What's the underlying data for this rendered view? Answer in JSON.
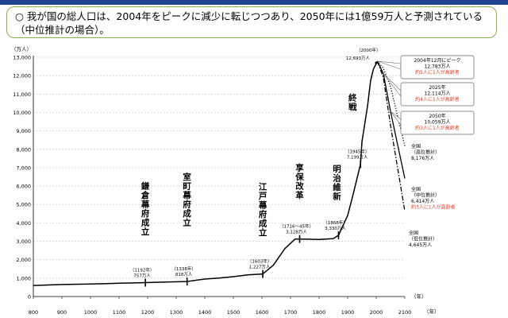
{
  "header": {
    "bullet": "○",
    "line1": "我が国の総人口は、2004年をピークに減少に転じつつあり、2050年には1億59万人と予測されている",
    "line2": "（中位推計の場合）。"
  },
  "colors": {
    "line": "#000000",
    "accent_red": "#e8402b",
    "frame": "#8ab04a",
    "bar": "#1f3f8f"
  },
  "chart_data": {
    "type": "line",
    "y_unit_label": "（万人）",
    "x_unit_label": "（年）",
    "x_ticks": [
      800,
      900,
      1000,
      1100,
      1200,
      1300,
      1400,
      1500,
      1600,
      1700,
      1800,
      1900,
      2000,
      2100
    ],
    "y_ticks": [
      0,
      1000,
      2000,
      3000,
      4000,
      5000,
      6000,
      7000,
      8000,
      9000,
      10000,
      11000,
      12000,
      13000
    ],
    "xlim": [
      800,
      2100
    ],
    "ylim": [
      0,
      13000
    ],
    "series": [
      {
        "style": "solid",
        "x": [
          800,
          900,
          1000,
          1100,
          1150,
          1192,
          1250,
          1338,
          1400,
          1450,
          1500,
          1550,
          1603,
          1640,
          1680,
          1716,
          1750,
          1800,
          1850,
          1868,
          1900,
          1920,
          1945,
          1950,
          1960,
          1970,
          1980,
          1990,
          2004
        ],
        "y": [
          600,
          650,
          680,
          720,
          740,
          757,
          780,
          818,
          950,
          1000,
          1080,
          1180,
          1227,
          1700,
          2600,
          3128,
          3120,
          3100,
          3150,
          3330,
          4400,
          5600,
          7199,
          8400,
          9400,
          10400,
          11700,
          12350,
          12783
        ]
      },
      {
        "style": "dotted",
        "x": [
          2004,
          2025,
          2050,
          2100
        ],
        "y": [
          12783,
          12400,
          11400,
          8176
        ]
      },
      {
        "style": "solid",
        "x": [
          2004,
          2025,
          2050,
          2100
        ],
        "y": [
          12783,
          12114,
          10059,
          6414
        ]
      },
      {
        "style": "dashdot",
        "x": [
          2004,
          2025,
          2050,
          2100
        ],
        "y": [
          12783,
          11900,
          9300,
          4645
        ]
      }
    ],
    "annotations": [
      {
        "id": "kamakura",
        "x": 1192,
        "y": 757,
        "text_v": "鎌倉幕府成立",
        "year": "（1192年）",
        "value": "757万人"
      },
      {
        "id": "muromachi",
        "x": 1338,
        "y": 818,
        "text_v": "室町幕府成立",
        "year": "（1338年）",
        "value": "818万人"
      },
      {
        "id": "edo",
        "x": 1603,
        "y": 1227,
        "text_v": "江戸幕府成立",
        "year": "（1603年）",
        "value": "1,227万人"
      },
      {
        "id": "kyoho",
        "x": 1732,
        "y": 3128,
        "text_v": "享保改革",
        "year": "（1716～45年）",
        "value": "3,128万人"
      },
      {
        "id": "meiji",
        "x": 1868,
        "y": 3330,
        "text_v": "明治維新",
        "year": "（1868年）",
        "value": "3,330万人"
      },
      {
        "id": "shusen",
        "x": 1945,
        "y": 7199,
        "text_v": "終戦",
        "year": "（1945年）",
        "value": "7,199万人"
      },
      {
        "id": "y2000",
        "x": 2000,
        "y": 12693,
        "year": "（2000年）",
        "value": "12,693万人"
      }
    ],
    "callouts": [
      {
        "id": "peak",
        "x": 2004,
        "y": 12783,
        "lines": [
          "2004年12月にピーク",
          "12,783万人"
        ],
        "red": "約5人に1人が高齢者"
      },
      {
        "id": "y2025",
        "x": 2025,
        "y": 12114,
        "lines": [
          "2025年",
          "12,114万人"
        ],
        "red": "約4人に1人が高齢者"
      },
      {
        "id": "y2050",
        "x": 2050,
        "y": 10059,
        "lines": [
          "2050年",
          "10,059万人"
        ],
        "red": "約3人に1人が高齢者"
      }
    ],
    "end_labels": [
      {
        "id": "high",
        "lines": [
          "全国",
          "（高位推計）",
          "8,176万人"
        ],
        "red": ""
      },
      {
        "id": "mid",
        "lines": [
          "全国",
          "（中位推計）",
          "6,414万人"
        ],
        "red": "約3人に1人が高齢者"
      },
      {
        "id": "low",
        "lines": [
          "全国",
          "（低位推計）",
          "4,645万人"
        ],
        "red": ""
      }
    ]
  }
}
